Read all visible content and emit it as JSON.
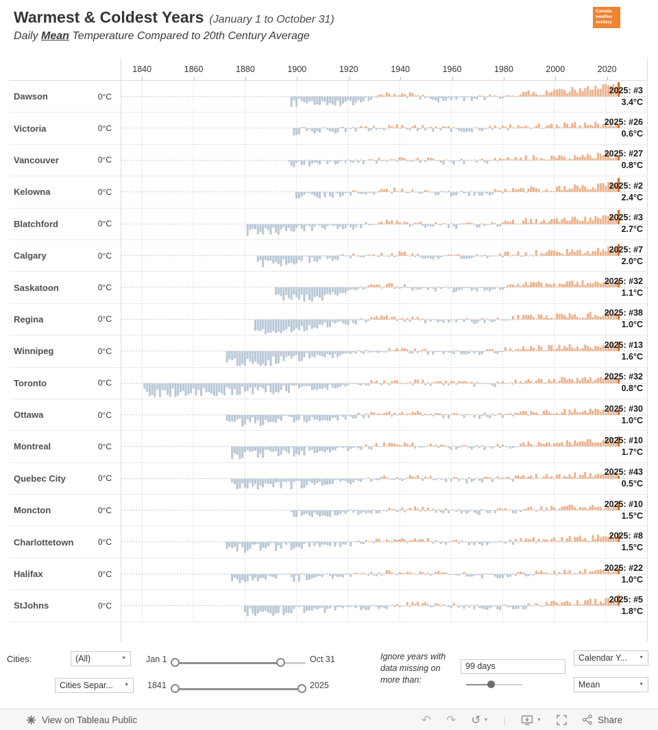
{
  "header": {
    "title": "Warmest & Coldest Years",
    "title_note": "(January 1 to October 31)",
    "subtitle_pre": "Daily ",
    "subtitle_emph": "Mean",
    "subtitle_post": " Temperature Compared to 20th Century Average",
    "logo_lines": [
      "Canada",
      "weather",
      "nerdery"
    ],
    "logo_color": "#ee8331"
  },
  "chart_data": {
    "type": "bar",
    "title": "Daily mean temperature anomaly vs 20th century average, per city per year (Jan 1 - Oct 31)",
    "unit": "°C",
    "x_domain": [
      1832,
      2036
    ],
    "axis_ticks": [
      1840,
      1860,
      1880,
      1900,
      1920,
      1940,
      1960,
      1980,
      2000,
      2020
    ],
    "zero_label": "0°C",
    "ylim": [
      -2.6,
      2.6
    ],
    "grid": true,
    "colors": {
      "warm": "#ecb28c",
      "cold": "#b7c7d6",
      "current": "#d66f28"
    },
    "legend": "light orange = warmer than 20th c. average, light blue = colder, dark orange = 2025",
    "cities": [
      {
        "name": "Dawson",
        "start_year": 1898,
        "rank_label": "2025:  #3",
        "value_label": "3.4°C",
        "anomaly_2025": 3.4,
        "trend": [
          [
            1898,
            -1.3
          ],
          [
            1910,
            -0.9
          ],
          [
            1921,
            -1.2
          ],
          [
            1933,
            0.3
          ],
          [
            1944,
            0.2
          ],
          [
            1956,
            -0.6
          ],
          [
            1968,
            -0.4
          ],
          [
            1978,
            -0.1
          ],
          [
            1990,
            0.6
          ],
          [
            2002,
            0.9
          ],
          [
            2014,
            1.4
          ],
          [
            2024,
            1.8
          ]
        ]
      },
      {
        "name": "Victoria",
        "start_year": 1899,
        "rank_label": "2025:  #26",
        "value_label": "0.6°C",
        "anomaly_2025": 0.6,
        "trend": [
          [
            1899,
            -0.6
          ],
          [
            1912,
            -0.4
          ],
          [
            1928,
            -0.1
          ],
          [
            1942,
            0.2
          ],
          [
            1956,
            -0.2
          ],
          [
            1970,
            -0.2
          ],
          [
            1984,
            0.2
          ],
          [
            1998,
            0.4
          ],
          [
            2012,
            0.6
          ],
          [
            2024,
            0.8
          ]
        ]
      },
      {
        "name": "Vancouver",
        "start_year": 1897,
        "rank_label": "2025:  #27",
        "value_label": "0.8°C",
        "anomaly_2025": 0.8,
        "trend": [
          [
            1897,
            -0.7
          ],
          [
            1912,
            -0.4
          ],
          [
            1928,
            -0.1
          ],
          [
            1942,
            0.2
          ],
          [
            1956,
            -0.2
          ],
          [
            1970,
            -0.2
          ],
          [
            1984,
            0.3
          ],
          [
            1998,
            0.5
          ],
          [
            2012,
            0.7
          ],
          [
            2024,
            0.9
          ]
        ]
      },
      {
        "name": "Kelowna",
        "start_year": 1900,
        "rank_label": "2025:  #2",
        "value_label": "2.4°C",
        "anomaly_2025": 2.4,
        "trend": [
          [
            1900,
            -0.9
          ],
          [
            1914,
            -0.5
          ],
          [
            1930,
            0.1
          ],
          [
            1944,
            0.3
          ],
          [
            1958,
            -0.3
          ],
          [
            1972,
            -0.2
          ],
          [
            1986,
            0.4
          ],
          [
            2000,
            0.6
          ],
          [
            2014,
            0.9
          ],
          [
            2024,
            1.3
          ]
        ]
      },
      {
        "name": "Blatchford",
        "start_year": 1881,
        "rank_label": "2025:  #3",
        "value_label": "2.7°C",
        "anomaly_2025": 2.7,
        "trend": [
          [
            1881,
            -1.7
          ],
          [
            1895,
            -1.1
          ],
          [
            1908,
            -0.6
          ],
          [
            1922,
            -0.5
          ],
          [
            1934,
            0.3
          ],
          [
            1948,
            -0.1
          ],
          [
            1962,
            -0.3
          ],
          [
            1976,
            -0.1
          ],
          [
            1990,
            0.6
          ],
          [
            2004,
            0.8
          ],
          [
            2016,
            1.0
          ],
          [
            2024,
            1.4
          ]
        ]
      },
      {
        "name": "Calgary",
        "start_year": 1885,
        "rank_label": "2025:  #7",
        "value_label": "2.0°C",
        "anomaly_2025": 2.0,
        "trend": [
          [
            1885,
            -1.4
          ],
          [
            1899,
            -0.9
          ],
          [
            1913,
            -0.5
          ],
          [
            1928,
            0.1
          ],
          [
            1942,
            0.3
          ],
          [
            1956,
            -0.2
          ],
          [
            1970,
            -0.2
          ],
          [
            1984,
            0.3
          ],
          [
            1998,
            0.6
          ],
          [
            2012,
            0.8
          ],
          [
            2024,
            1.2
          ]
        ]
      },
      {
        "name": "Saskatoon",
        "start_year": 1892,
        "rank_label": "2025:  #32",
        "value_label": "1.1°C",
        "anomaly_2025": 1.1,
        "trend": [
          [
            1892,
            -1.4
          ],
          [
            1907,
            -2.1
          ],
          [
            1919,
            -0.8
          ],
          [
            1933,
            0.3
          ],
          [
            1947,
            -0.1
          ],
          [
            1961,
            -0.4
          ],
          [
            1975,
            -0.2
          ],
          [
            1989,
            0.4
          ],
          [
            2003,
            0.6
          ],
          [
            2016,
            0.8
          ],
          [
            2024,
            1.1
          ]
        ]
      },
      {
        "name": "Regina",
        "start_year": 1884,
        "rank_label": "2025:  #38",
        "value_label": "1.0°C",
        "anomaly_2025": 1.0,
        "trend": [
          [
            1884,
            -1.9
          ],
          [
            1893,
            -2.3
          ],
          [
            1907,
            -1.2
          ],
          [
            1920,
            -0.6
          ],
          [
            1934,
            0.4
          ],
          [
            1948,
            -0.1
          ],
          [
            1962,
            -0.3
          ],
          [
            1976,
            -0.2
          ],
          [
            1990,
            0.5
          ],
          [
            2004,
            0.6
          ],
          [
            2016,
            0.8
          ],
          [
            2024,
            1.1
          ]
        ]
      },
      {
        "name": "Winnipeg",
        "start_year": 1873,
        "rank_label": "2025:  #13",
        "value_label": "1.6°C",
        "anomaly_2025": 1.6,
        "trend": [
          [
            1873,
            -1.9
          ],
          [
            1884,
            -2.2
          ],
          [
            1897,
            -1.3
          ],
          [
            1911,
            -0.8
          ],
          [
            1924,
            -0.3
          ],
          [
            1938,
            0.3
          ],
          [
            1952,
            -0.2
          ],
          [
            1966,
            -0.4
          ],
          [
            1980,
            0.1
          ],
          [
            1994,
            0.5
          ],
          [
            2008,
            0.7
          ],
          [
            2024,
            1.1
          ]
        ]
      },
      {
        "name": "Toronto",
        "start_year": 1841,
        "rank_label": "2025:  #32",
        "value_label": "0.8°C",
        "anomaly_2025": 0.8,
        "trend": [
          [
            1841,
            -1.5
          ],
          [
            1856,
            -1.7
          ],
          [
            1871,
            -1.4
          ],
          [
            1886,
            -1.2
          ],
          [
            1901,
            -0.9
          ],
          [
            1916,
            -0.5
          ],
          [
            1931,
            0.1
          ],
          [
            1946,
            0.2
          ],
          [
            1961,
            -0.1
          ],
          [
            1976,
            -0.2
          ],
          [
            1991,
            0.4
          ],
          [
            2006,
            0.6
          ],
          [
            2024,
            1.0
          ]
        ]
      },
      {
        "name": "Ottawa",
        "start_year": 1873,
        "rank_label": "2025:  #30",
        "value_label": "1.0°C",
        "anomaly_2025": 1.0,
        "trend": [
          [
            1873,
            -1.4
          ],
          [
            1888,
            -1.1
          ],
          [
            1903,
            -0.8
          ],
          [
            1918,
            -0.4
          ],
          [
            1933,
            0.2
          ],
          [
            1948,
            0.2
          ],
          [
            1963,
            -0.2
          ],
          [
            1978,
            -0.1
          ],
          [
            1993,
            0.4
          ],
          [
            2008,
            0.6
          ],
          [
            2024,
            0.9
          ]
        ]
      },
      {
        "name": "Montreal",
        "start_year": 1875,
        "rank_label": "2025:  #10",
        "value_label": "1.7°C",
        "anomaly_2025": 1.7,
        "trend": [
          [
            1875,
            -1.5
          ],
          [
            1890,
            -1.1
          ],
          [
            1905,
            -0.8
          ],
          [
            1920,
            -0.4
          ],
          [
            1935,
            0.2
          ],
          [
            1950,
            0.2
          ],
          [
            1965,
            -0.2
          ],
          [
            1980,
            0.0
          ],
          [
            1995,
            0.5
          ],
          [
            2010,
            0.7
          ],
          [
            2024,
            1.1
          ]
        ]
      },
      {
        "name": "Quebec City",
        "start_year": 1875,
        "rank_label": "2025:  #43",
        "value_label": "0.5°C",
        "anomaly_2025": 0.5,
        "trend": [
          [
            1875,
            -1.4
          ],
          [
            1890,
            -1.2
          ],
          [
            1905,
            -0.9
          ],
          [
            1920,
            -0.5
          ],
          [
            1935,
            0.1
          ],
          [
            1950,
            0.1
          ],
          [
            1965,
            -0.3
          ],
          [
            1980,
            -0.1
          ],
          [
            1995,
            0.4
          ],
          [
            2010,
            0.6
          ],
          [
            2024,
            0.9
          ]
        ]
      },
      {
        "name": "Moncton",
        "start_year": 1898,
        "rank_label": "2025:  #10",
        "value_label": "1.5°C",
        "anomaly_2025": 1.5,
        "trend": [
          [
            1898,
            -0.9
          ],
          [
            1913,
            -0.6
          ],
          [
            1928,
            -0.2
          ],
          [
            1943,
            0.2
          ],
          [
            1958,
            -0.1
          ],
          [
            1973,
            -0.3
          ],
          [
            1988,
            0.1
          ],
          [
            2003,
            0.4
          ],
          [
            2018,
            0.7
          ],
          [
            2024,
            0.8
          ]
        ]
      },
      {
        "name": "Charlottetown",
        "start_year": 1873,
        "rank_label": "2025:  #8",
        "value_label": "1.5°C",
        "anomaly_2025": 1.5,
        "trend": [
          [
            1873,
            -1.2
          ],
          [
            1888,
            -0.9
          ],
          [
            1903,
            -0.7
          ],
          [
            1918,
            -0.4
          ],
          [
            1933,
            0.1
          ],
          [
            1948,
            0.2
          ],
          [
            1963,
            -0.2
          ],
          [
            1978,
            -0.2
          ],
          [
            1993,
            0.3
          ],
          [
            2008,
            0.5
          ],
          [
            2024,
            0.9
          ]
        ]
      },
      {
        "name": "Halifax",
        "start_year": 1875,
        "rank_label": "2025:  #22",
        "value_label": "1.0°C",
        "anomaly_2025": 1.0,
        "trend": [
          [
            1875,
            -1.0
          ],
          [
            1890,
            -0.8
          ],
          [
            1905,
            -0.6
          ],
          [
            1920,
            -0.3
          ],
          [
            1935,
            0.2
          ],
          [
            1950,
            0.3
          ],
          [
            1965,
            -0.2
          ],
          [
            1980,
            -0.3
          ],
          [
            1995,
            0.2
          ],
          [
            2010,
            0.5
          ],
          [
            2024,
            0.8
          ]
        ]
      },
      {
        "name": "StJohns",
        "start_year": 1880,
        "rank_label": "2025:  #5",
        "value_label": "1.8°C",
        "anomaly_2025": 1.8,
        "trend": [
          [
            1880,
            -1.1
          ],
          [
            1895,
            -0.9
          ],
          [
            1910,
            -0.7
          ],
          [
            1925,
            -0.4
          ],
          [
            1940,
            0.1
          ],
          [
            1955,
            0.2
          ],
          [
            1970,
            -0.2
          ],
          [
            1985,
            -0.3
          ],
          [
            2000,
            0.3
          ],
          [
            2015,
            0.7
          ],
          [
            2024,
            0.9
          ]
        ]
      }
    ]
  },
  "controls": {
    "cities_label": "Cities:",
    "cities_filter_value": "(All)",
    "cities_mode_value": "Cities Separ...",
    "date_slider": {
      "min_label": "Jan 1",
      "max_label": "Oct 31"
    },
    "year_slider": {
      "min_label": "1841",
      "max_label": "2025"
    },
    "missing_note": "Ignore years with data missing on more than:",
    "missing_value": "99 days",
    "calendar_value": "Calendar Y...",
    "measure_value": "Mean"
  },
  "toolbar": {
    "view_label": "View on Tableau Public",
    "share_label": "Share"
  }
}
